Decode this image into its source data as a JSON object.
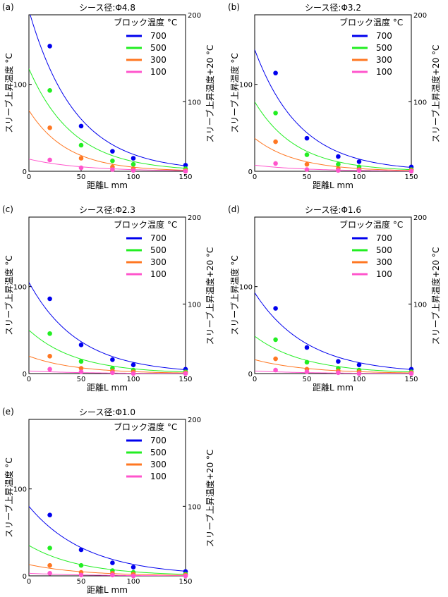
{
  "chart_data": [
    {
      "type": "scatter",
      "panel_label": "(a)",
      "title": "シース径:Φ4.8",
      "xlabel": "距離L mm",
      "ylabel": "スリーブ上昇温度 °C",
      "y2label": "スリーブ上昇温度+20 °C",
      "xlim": [
        0,
        150
      ],
      "ylim": [
        0,
        180
      ],
      "y2lim": [
        20,
        200
      ],
      "xticks": [
        "0",
        "50",
        "100",
        "150"
      ],
      "yticks": [
        "0",
        "100"
      ],
      "y2ticks": [
        "100",
        "200"
      ],
      "legend_title": "ブロック温度 °C",
      "legend_position": "top-right",
      "grid": false,
      "series": [
        {
          "name": "700",
          "color": "#0000ee",
          "x": [
            20,
            50,
            80,
            100,
            150
          ],
          "y": [
            144,
            52,
            23,
            15,
            7
          ],
          "fit_a": 185,
          "fit_k": 0.0225
        },
        {
          "name": "500",
          "color": "#22ee22",
          "x": [
            20,
            50,
            80,
            100,
            150
          ],
          "y": [
            93,
            30,
            12,
            8,
            3
          ],
          "fit_a": 118,
          "fit_k": 0.0235
        },
        {
          "name": "300",
          "color": "#ff7722",
          "x": [
            20,
            50,
            80,
            100,
            150
          ],
          "y": [
            50,
            15,
            5,
            3,
            1
          ],
          "fit_a": 70,
          "fit_k": 0.027
        },
        {
          "name": "100",
          "color": "#ff55cc",
          "x": [
            20,
            50,
            80,
            100,
            150
          ],
          "y": [
            13,
            4,
            2,
            1,
            0
          ],
          "fit_a": 14,
          "fit_k": 0.02
        }
      ]
    },
    {
      "type": "scatter",
      "panel_label": "(b)",
      "title": "シース径:Φ3.2",
      "xlabel": "距離L mm",
      "ylabel": "スリーブ上昇温度 °C",
      "y2label": "スリーブ上昇温度+20 °C",
      "xlim": [
        0,
        150
      ],
      "ylim": [
        0,
        180
      ],
      "y2lim": [
        20,
        200
      ],
      "xticks": [
        "0",
        "50",
        "100",
        "150"
      ],
      "yticks": [
        "0",
        "100"
      ],
      "y2ticks": [
        "100",
        "200"
      ],
      "legend_title": "ブロック温度 °C",
      "legend_position": "top-right",
      "grid": false,
      "series": [
        {
          "name": "700",
          "color": "#0000ee",
          "x": [
            20,
            50,
            80,
            100,
            150
          ],
          "y": [
            113,
            38,
            17,
            11,
            5
          ],
          "fit_a": 140,
          "fit_k": 0.023
        },
        {
          "name": "500",
          "color": "#22ee22",
          "x": [
            20,
            50,
            80,
            100,
            150
          ],
          "y": [
            67,
            19,
            8,
            5,
            2
          ],
          "fit_a": 80,
          "fit_k": 0.025
        },
        {
          "name": "300",
          "color": "#ff7722",
          "x": [
            20,
            50,
            80,
            100,
            150
          ],
          "y": [
            34,
            8,
            3,
            2,
            1
          ],
          "fit_a": 38,
          "fit_k": 0.025
        },
        {
          "name": "100",
          "color": "#ff55cc",
          "x": [
            20,
            50,
            80,
            100,
            150
          ],
          "y": [
            9,
            2,
            1,
            1,
            0
          ],
          "fit_a": 7,
          "fit_k": 0.02
        }
      ]
    },
    {
      "type": "scatter",
      "panel_label": "(c)",
      "title": "シース径:Φ2.3",
      "xlabel": "距離L mm",
      "ylabel": "スリーブ上昇温度 °C",
      "y2label": "スリーブ上昇温度+20 °C",
      "xlim": [
        0,
        150
      ],
      "ylim": [
        0,
        180
      ],
      "y2lim": [
        20,
        200
      ],
      "xticks": [
        "0",
        "50",
        "100",
        "150"
      ],
      "yticks": [
        "0",
        "100"
      ],
      "y2ticks": [
        "100",
        "200"
      ],
      "legend_title": "ブロック温度 °C",
      "legend_position": "top-right",
      "grid": false,
      "series": [
        {
          "name": "700",
          "color": "#0000ee",
          "x": [
            20,
            50,
            80,
            100,
            150
          ],
          "y": [
            86,
            33,
            16,
            10,
            5
          ],
          "fit_a": 105,
          "fit_k": 0.021
        },
        {
          "name": "500",
          "color": "#22ee22",
          "x": [
            20,
            50,
            80,
            100,
            150
          ],
          "y": [
            46,
            14,
            6,
            4,
            2
          ],
          "fit_a": 50,
          "fit_k": 0.022
        },
        {
          "name": "300",
          "color": "#ff7722",
          "x": [
            20,
            50,
            80,
            100,
            150
          ],
          "y": [
            20,
            6,
            3,
            2,
            1
          ],
          "fit_a": 20,
          "fit_k": 0.022
        },
        {
          "name": "100",
          "color": "#ff55cc",
          "x": [
            20,
            50,
            80,
            100,
            150
          ],
          "y": [
            5,
            2,
            1,
            0,
            0
          ],
          "fit_a": 3,
          "fit_k": 0.02
        }
      ]
    },
    {
      "type": "scatter",
      "panel_label": "(d)",
      "title": "シース径:Φ1.6",
      "xlabel": "距離L mm",
      "ylabel": "スリーブ上昇温度 °C",
      "y2label": "スリーブ上昇温度+20 °C",
      "xlim": [
        0,
        150
      ],
      "ylim": [
        0,
        180
      ],
      "y2lim": [
        20,
        200
      ],
      "xticks": [
        "0",
        "50",
        "100",
        "150"
      ],
      "yticks": [
        "0",
        "100"
      ],
      "y2ticks": [
        "100",
        "200"
      ],
      "legend_title": "ブロック温度 °C",
      "legend_position": "top-right",
      "grid": false,
      "series": [
        {
          "name": "700",
          "color": "#0000ee",
          "x": [
            20,
            50,
            80,
            100,
            150
          ],
          "y": [
            75,
            30,
            14,
            10,
            5
          ],
          "fit_a": 93,
          "fit_k": 0.02
        },
        {
          "name": "500",
          "color": "#22ee22",
          "x": [
            20,
            50,
            80,
            100,
            150
          ],
          "y": [
            39,
            13,
            6,
            4,
            2
          ],
          "fit_a": 43,
          "fit_k": 0.021
        },
        {
          "name": "300",
          "color": "#ff7722",
          "x": [
            20,
            50,
            80,
            100,
            150
          ],
          "y": [
            17,
            5,
            3,
            2,
            1
          ],
          "fit_a": 16,
          "fit_k": 0.02
        },
        {
          "name": "100",
          "color": "#ff55cc",
          "x": [
            20,
            50,
            80,
            100,
            150
          ],
          "y": [
            4,
            2,
            1,
            0,
            0
          ],
          "fit_a": 3,
          "fit_k": 0.02
        }
      ]
    },
    {
      "type": "scatter",
      "panel_label": "(e)",
      "title": "シース径:Φ1.0",
      "xlabel": "距離L mm",
      "ylabel": "スリーブ上昇温度 °C",
      "y2label": "スリーブ上昇温度+20 °C",
      "xlim": [
        0,
        150
      ],
      "ylim": [
        0,
        180
      ],
      "y2lim": [
        20,
        200
      ],
      "xticks": [
        "0",
        "50",
        "100",
        "150"
      ],
      "yticks": [
        "0",
        "100"
      ],
      "y2ticks": [
        "100",
        "200"
      ],
      "legend_title": "ブロック温度 °C",
      "legend_position": "top-right",
      "grid": false,
      "series": [
        {
          "name": "700",
          "color": "#0000ee",
          "x": [
            20,
            50,
            80,
            100,
            150
          ],
          "y": [
            70,
            30,
            15,
            10,
            5
          ],
          "fit_a": 80,
          "fit_k": 0.018
        },
        {
          "name": "500",
          "color": "#22ee22",
          "x": [
            20,
            50,
            80,
            100,
            150
          ],
          "y": [
            32,
            12,
            6,
            4,
            2
          ],
          "fit_a": 35,
          "fit_k": 0.02
        },
        {
          "name": "300",
          "color": "#ff7722",
          "x": [
            20,
            50,
            80,
            100,
            150
          ],
          "y": [
            12,
            4,
            3,
            2,
            1
          ],
          "fit_a": 13,
          "fit_k": 0.02
        },
        {
          "name": "100",
          "color": "#ff55cc",
          "x": [
            20,
            50,
            80,
            100,
            150
          ],
          "y": [
            3,
            1,
            1,
            0,
            0
          ],
          "fit_a": 3,
          "fit_k": 0.02
        }
      ]
    }
  ]
}
